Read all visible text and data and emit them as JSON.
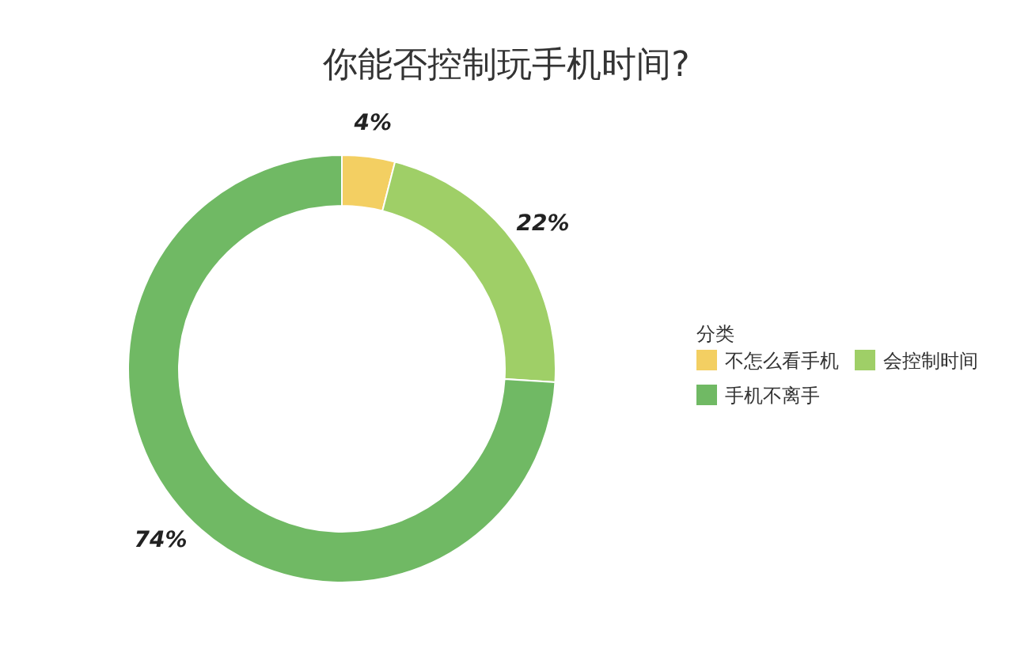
{
  "chart_data": {
    "type": "donut",
    "title": "你能否控制玩手机时间?",
    "legend_title": "分类",
    "categories": [
      "不怎么看手机",
      "会控制时间",
      "手机不离手"
    ],
    "values": [
      4,
      22,
      74
    ],
    "colors": [
      "#f3cf62",
      "#9fcf67",
      "#70b964"
    ],
    "value_labels": [
      "4%",
      "22%",
      "74%"
    ],
    "legend": "right"
  }
}
